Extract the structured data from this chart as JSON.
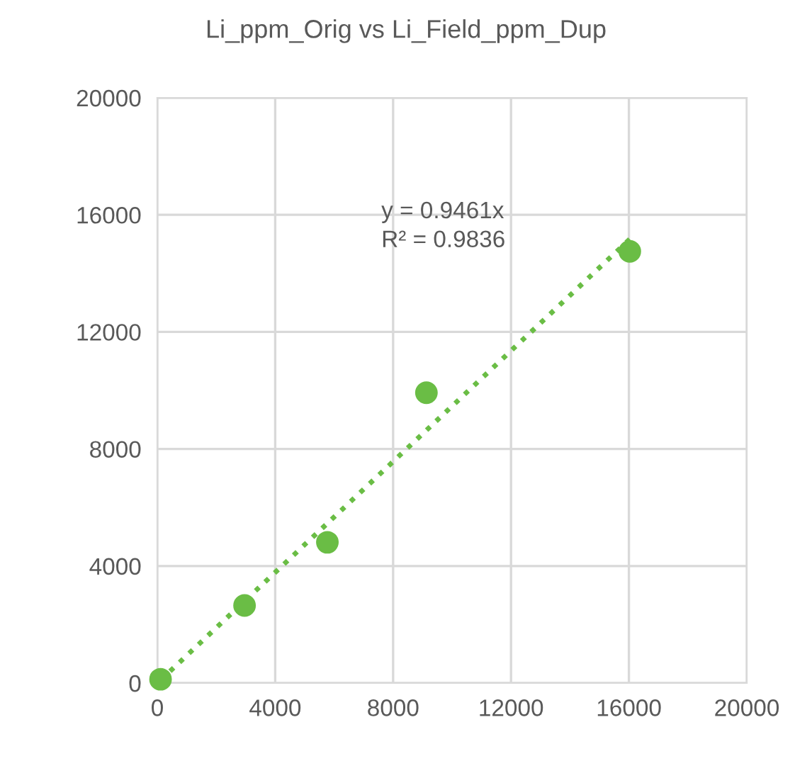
{
  "chart_data": {
    "type": "scatter",
    "title": "Li_ppm_Orig vs Li_Field_ppm_Dup",
    "series": [
      {
        "color": "#6abd45",
        "marker": "circle",
        "x": [
          110,
          2960,
          5770,
          9130,
          16030
        ],
        "values": [
          130,
          2650,
          4810,
          9920,
          14750
        ]
      },
      {
        "type": "line",
        "color": "#6abd45",
        "line_style": "dotted",
        "x": [
          110,
          16030
        ],
        "values": [
          100,
          15170
        ]
      }
    ],
    "annotations": [
      "y = 0.9461x\nR² = 0.9836"
    ],
    "xlim": [
      0,
      20000
    ],
    "xticks": [
      0,
      4000,
      8000,
      12000,
      16000,
      20000
    ],
    "ylim": [
      0,
      20000
    ],
    "yticks": [
      0,
      4000,
      8000,
      12000,
      16000,
      20000
    ],
    "grid": true,
    "legend": false
  }
}
